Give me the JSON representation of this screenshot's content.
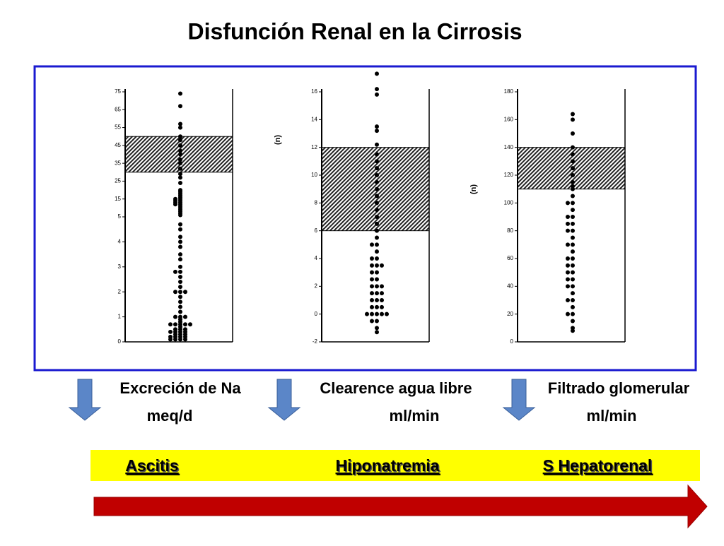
{
  "title": "Disfunción Renal en la Cirrosis",
  "chart_data": [
    {
      "type": "strip",
      "segments": [
        {
          "ylim": [
            0,
            5
          ],
          "yticks": [
            0,
            1,
            2,
            3,
            4,
            5
          ]
        },
        {
          "ylim": [
            5,
            75
          ],
          "yticks": [
            15,
            25,
            35,
            45,
            55,
            65,
            75
          ],
          "band": [
            30,
            50
          ]
        }
      ],
      "values": [
        74,
        67,
        57,
        55,
        50,
        48,
        45,
        42,
        40,
        37,
        35,
        32,
        29,
        27,
        24,
        20,
        19,
        18,
        17,
        16,
        15,
        15,
        14,
        14,
        13,
        13,
        12,
        12,
        11,
        10,
        9,
        8,
        7,
        6,
        4.7,
        4.5,
        4.2,
        4.0,
        3.8,
        3.5,
        3.3,
        3.0,
        2.8,
        2.8,
        2.6,
        2.4,
        2.2,
        2.0,
        2.0,
        2.0,
        1.8,
        1.6,
        1.4,
        1.2,
        1.0,
        1.0,
        1.0,
        0.9,
        0.8,
        0.7,
        0.7,
        0.7,
        0.7,
        0.7,
        0.6,
        0.5,
        0.5,
        0.5,
        0.4,
        0.4,
        0.4,
        0.4,
        0.3,
        0.3,
        0.3,
        0.2,
        0.2,
        0.2,
        0.2,
        0.1,
        0.1,
        0.1,
        0.1
      ]
    },
    {
      "type": "strip",
      "ylabel": "(n)",
      "segments": [
        {
          "ylim": [
            -2,
            16
          ],
          "yticks": [
            -2,
            0,
            2,
            4,
            6,
            8,
            10,
            12,
            14,
            16
          ],
          "band": [
            6,
            12
          ]
        }
      ],
      "values": [
        17.3,
        16.2,
        15.8,
        13.5,
        13.2,
        12.2,
        11.5,
        11,
        10.5,
        10,
        9.5,
        9,
        8.5,
        8,
        7.5,
        7,
        6.5,
        6,
        5.5,
        5,
        5,
        4.5,
        4,
        4,
        3.5,
        3.5,
        3.5,
        3,
        3,
        2.5,
        2.5,
        2,
        2,
        2,
        1.5,
        1.5,
        1.5,
        1,
        1,
        1,
        0.5,
        0.5,
        0.5,
        0,
        0,
        0,
        0,
        0,
        -0.5,
        -0.5,
        -1,
        -1.3
      ]
    },
    {
      "type": "strip",
      "ylabel": "(n)",
      "segments": [
        {
          "ylim": [
            0,
            180
          ],
          "yticks": [
            0,
            20,
            40,
            60,
            80,
            100,
            120,
            140,
            160,
            180
          ],
          "band": [
            110,
            140
          ]
        }
      ],
      "values": [
        164,
        160,
        150,
        140,
        135,
        130,
        125,
        120,
        115,
        112,
        110,
        105,
        100,
        100,
        95,
        90,
        90,
        85,
        85,
        80,
        80,
        75,
        70,
        70,
        65,
        60,
        60,
        55,
        55,
        50,
        50,
        45,
        45,
        40,
        40,
        35,
        30,
        30,
        25,
        20,
        20,
        15,
        10,
        8
      ]
    }
  ],
  "labels": [
    {
      "line1": "Excreción de Na",
      "line2": "meq/d"
    },
    {
      "line1": "Clearence agua libre",
      "line2": "ml/min"
    },
    {
      "line1": "Filtrado glomerular",
      "line2": "ml/min"
    }
  ],
  "stages": [
    "Ascitis",
    "Hiponatremia",
    "S Hepatorenal"
  ]
}
